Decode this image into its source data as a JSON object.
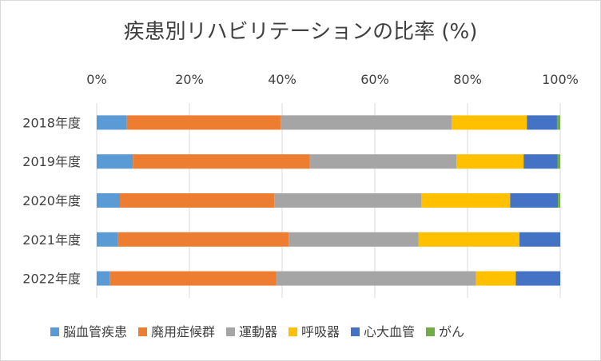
{
  "chart_data": {
    "type": "bar",
    "orientation": "horizontal",
    "stacking": "percent",
    "title": "疾患別リハビリテーションの比率 (%)",
    "categories": [
      "2018年度",
      "2019年度",
      "2020年度",
      "2021年度",
      "2022年度"
    ],
    "x_ticks": [
      "0%",
      "20%",
      "40%",
      "60%",
      "80%",
      "100%"
    ],
    "xlim": [
      0,
      100
    ],
    "grid": true,
    "legend_position": "bottom",
    "series": [
      {
        "name": "脳血管疾患",
        "color": "#5B9BD5",
        "values": [
          6.5,
          7.8,
          5.0,
          4.6,
          2.8
        ]
      },
      {
        "name": "廃用症候群",
        "color": "#ED7D31",
        "values": [
          33.2,
          38.2,
          33.3,
          36.8,
          35.9
        ]
      },
      {
        "name": "運動器",
        "color": "#A5A5A5",
        "values": [
          36.9,
          31.6,
          31.7,
          28.0,
          43.1
        ]
      },
      {
        "name": "呼吸器",
        "color": "#FFC000",
        "values": [
          16.2,
          14.5,
          19.2,
          21.8,
          8.6
        ]
      },
      {
        "name": "心大血管",
        "color": "#4472C4",
        "values": [
          6.5,
          7.3,
          10.3,
          8.8,
          9.6
        ]
      },
      {
        "name": "がん",
        "color": "#70AD47",
        "values": [
          0.7,
          0.6,
          0.5,
          0.0,
          0.0
        ]
      }
    ]
  }
}
